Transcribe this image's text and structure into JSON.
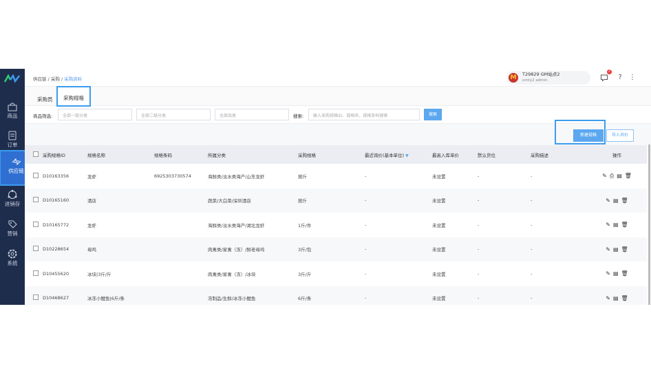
{
  "sidebar": {
    "items": [
      {
        "label": "商品",
        "icon": "basket-icon"
      },
      {
        "label": "订单",
        "icon": "document-icon"
      },
      {
        "label": "供应链",
        "icon": "exchange-icon",
        "active": true
      },
      {
        "label": "进销存",
        "icon": "network-icon"
      },
      {
        "label": "营销",
        "icon": "tag-icon"
      },
      {
        "label": "系统",
        "icon": "gear-icon"
      }
    ]
  },
  "breadcrumb": [
    "供应链",
    "采购",
    "采购资料"
  ],
  "user": {
    "name": "T29829 GM站点2",
    "role": "omty2 admin",
    "notifications": "2"
  },
  "tabs": [
    "采购员",
    "采购规格"
  ],
  "filter": {
    "label": "商品筛选:",
    "level1": "全部一级分类",
    "level2": "全部二级分类",
    "category": "全部品类",
    "search_label": "搜索:",
    "search_placeholder": "输入采购规格ID、规格名、规格条码搜索",
    "search_button": "搜索"
  },
  "toolbar": {
    "new": "新建规格",
    "import": "导入询价"
  },
  "table": {
    "headers": [
      "采购规格ID",
      "规格名称",
      "规格条码",
      "所属分类",
      "采购规格",
      "最近询价(基本单位)",
      "最高入库单价",
      "默认货位",
      "采购描述",
      "操作"
    ],
    "rows": [
      [
        "D10163356",
        "龙虾",
        "6925303730574",
        "海鲜类/淡水类海产/山东龙虾",
        "按斤",
        "-",
        "未设置",
        "-",
        "-"
      ],
      [
        "D10165160",
        "酒店",
        "",
        "蔬菜/大白菜/深圳酒店",
        "按斤",
        "-",
        "未设置",
        "-",
        "-"
      ],
      [
        "D10165772",
        "龙虾",
        "",
        "海鲜类/淡水类海产/湖北龙虾",
        "1斤/件",
        "-",
        "未设置",
        "-",
        "-"
      ],
      [
        "D10228654",
        "母鸡",
        "",
        "肉禽类/家禽（冻）/鲜老母鸡",
        "3斤/包",
        "-",
        "未设置",
        "-",
        "-"
      ],
      [
        "D10455620",
        "冰块|3斤/斤",
        "",
        "肉禽类/家禽（冻）/冰块",
        "3斤/斤",
        "-",
        "未设置",
        "-",
        "-"
      ],
      [
        "D10468627",
        "冰冻小鲤鱼|6斤/条",
        "",
        "冻制品/生鲜/冰冻小鲤鱼",
        "6斤/条",
        "-",
        "未设置",
        "-",
        "-"
      ]
    ]
  },
  "colors": {
    "sidebar": "#1f2d4d",
    "accent": "#5ba7f0"
  }
}
